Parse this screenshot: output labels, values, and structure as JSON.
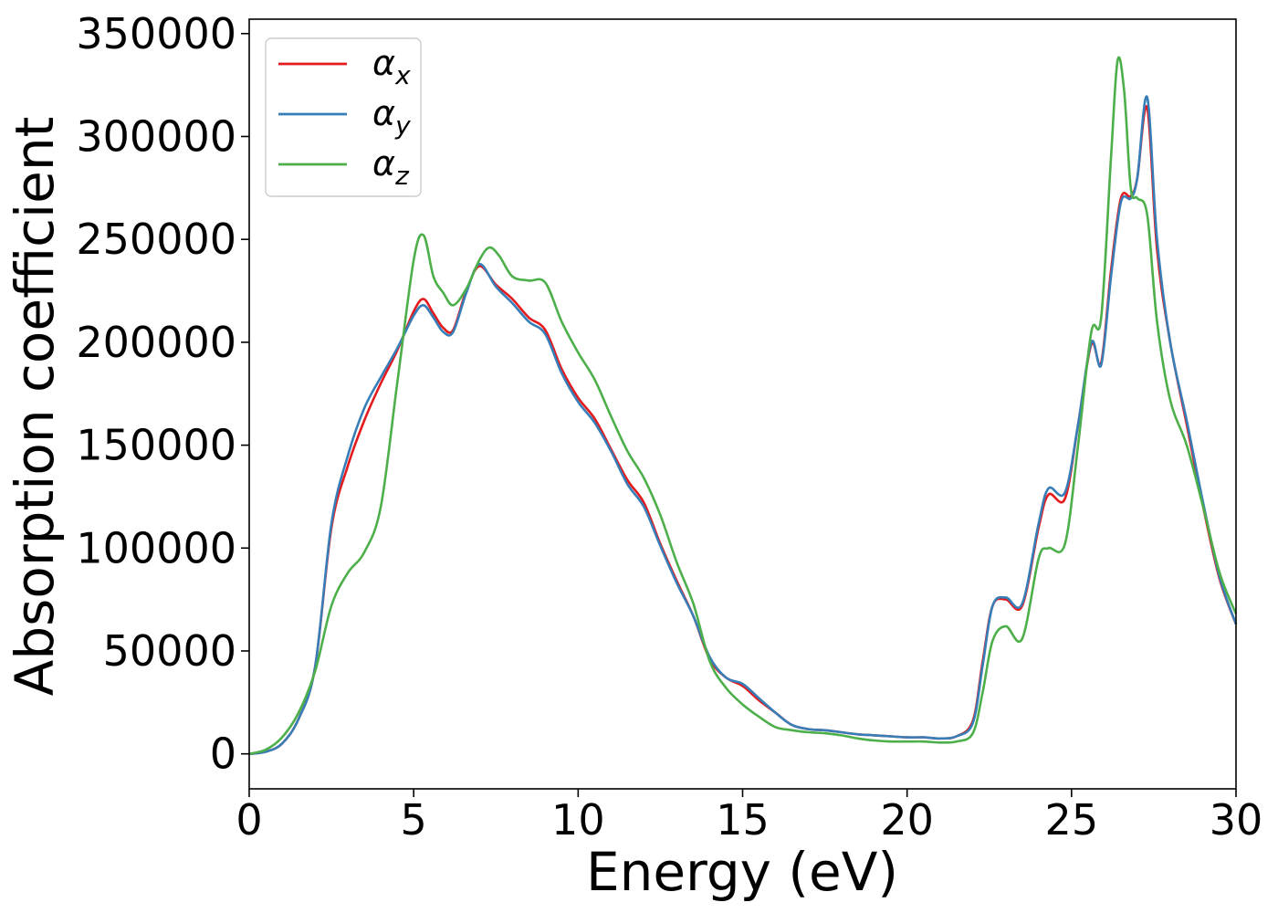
{
  "chart_data": {
    "type": "line",
    "xlabel": "Energy (eV)",
    "ylabel": "Absorption coefficient",
    "xlim": [
      0,
      30
    ],
    "ylim": [
      -17000,
      357000
    ],
    "xticks": [
      0,
      5,
      10,
      15,
      20,
      25,
      30
    ],
    "yticks": [
      0,
      50000,
      100000,
      150000,
      200000,
      250000,
      300000,
      350000
    ],
    "grid": false,
    "legend_position": "top-left",
    "series": [
      {
        "name": "α_x",
        "legend_base": "α",
        "legend_sub": "x",
        "color": "#e41a1c",
        "x": [
          0,
          0.5,
          1,
          1.5,
          2,
          2.5,
          3,
          3.5,
          4,
          4.5,
          5,
          5.3,
          5.6,
          5.9,
          6.2,
          6.6,
          7,
          7.5,
          8,
          8.5,
          9,
          9.5,
          10,
          10.5,
          11,
          11.5,
          12,
          12.5,
          13,
          13.5,
          14,
          14.5,
          15,
          15.5,
          16,
          16.5,
          17,
          17.5,
          18,
          18.5,
          19,
          19.5,
          20,
          20.5,
          21,
          21.5,
          22,
          22.3,
          22.6,
          23,
          23.5,
          24,
          24.3,
          24.8,
          25.2,
          25.6,
          25.9,
          26.2,
          26.5,
          26.8,
          27,
          27.3,
          27.6,
          28,
          28.5,
          29,
          29.5,
          30
        ],
        "y": [
          0,
          1000,
          5000,
          17000,
          42000,
          110000,
          140000,
          162000,
          180000,
          196000,
          215000,
          221000,
          214000,
          207000,
          206000,
          225000,
          237000,
          228000,
          221000,
          212000,
          206000,
          187000,
          173000,
          163000,
          148000,
          133000,
          122000,
          102000,
          84000,
          67000,
          46000,
          37000,
          33000,
          26000,
          20000,
          14000,
          12000,
          11500,
          10500,
          9500,
          9000,
          8500,
          8000,
          8000,
          7500,
          8500,
          16000,
          45000,
          72000,
          75000,
          72000,
          110000,
          126000,
          124000,
          160000,
          199000,
          190000,
          235000,
          270000,
          271000,
          280000,
          314000,
          245000,
          200000,
          160000,
          120000,
          85000,
          63000
        ]
      },
      {
        "name": "α_y",
        "legend_base": "α",
        "legend_sub": "y",
        "color": "#377eb8",
        "x": [
          0,
          0.5,
          1,
          1.5,
          2,
          2.5,
          3,
          3.5,
          4,
          4.5,
          5,
          5.3,
          5.6,
          5.9,
          6.2,
          6.6,
          7,
          7.5,
          8,
          8.5,
          9,
          9.5,
          10,
          10.5,
          11,
          11.5,
          12,
          12.5,
          13,
          13.5,
          14,
          14.5,
          15,
          15.5,
          16,
          16.5,
          17,
          17.5,
          18,
          18.5,
          19,
          19.5,
          20,
          20.5,
          21,
          21.5,
          22,
          22.3,
          22.6,
          23,
          23.5,
          24,
          24.3,
          24.8,
          25.2,
          25.6,
          25.9,
          26.2,
          26.5,
          26.8,
          27,
          27.3,
          27.6,
          28,
          28.5,
          29,
          29.5,
          30
        ],
        "y": [
          0,
          1000,
          5000,
          17000,
          42000,
          112000,
          145000,
          168000,
          183000,
          197000,
          213000,
          218000,
          212000,
          205000,
          205000,
          224000,
          238000,
          227000,
          219000,
          210000,
          204000,
          185000,
          171000,
          161000,
          147000,
          131000,
          120000,
          101000,
          83000,
          67000,
          47000,
          37000,
          34000,
          27000,
          20000,
          14000,
          12000,
          11500,
          10500,
          9500,
          9000,
          8500,
          8000,
          8000,
          7500,
          8500,
          15000,
          43000,
          72000,
          76000,
          73000,
          112000,
          129000,
          127000,
          160000,
          200000,
          189000,
          232000,
          268000,
          270000,
          280000,
          319000,
          250000,
          200000,
          162000,
          122000,
          86000,
          63000
        ]
      },
      {
        "name": "α_z",
        "legend_base": "α",
        "legend_sub": "z",
        "color": "#4daf4a",
        "x": [
          0,
          0.5,
          1,
          1.5,
          2,
          2.5,
          3,
          3.5,
          4,
          4.5,
          5,
          5.3,
          5.6,
          5.9,
          6.2,
          6.6,
          7,
          7.3,
          7.6,
          8,
          8.5,
          9,
          9.5,
          10,
          10.5,
          11,
          11.5,
          12,
          12.5,
          13,
          13.5,
          14,
          14.5,
          15,
          15.5,
          16,
          16.5,
          17,
          17.5,
          18,
          18.5,
          19,
          19.5,
          20,
          20.5,
          21,
          21.5,
          22,
          22.3,
          22.6,
          23,
          23.5,
          24,
          24.3,
          24.8,
          25.2,
          25.6,
          25.9,
          26.2,
          26.4,
          26.6,
          26.8,
          27,
          27.3,
          27.6,
          28,
          28.5,
          29,
          29.5,
          30
        ],
        "y": [
          0,
          2000,
          8000,
          20000,
          40000,
          72000,
          88000,
          98000,
          120000,
          180000,
          240000,
          252000,
          232000,
          224000,
          218000,
          226000,
          240000,
          246000,
          242000,
          232000,
          230000,
          229000,
          210000,
          195000,
          182000,
          164000,
          147000,
          134000,
          116000,
          93000,
          73000,
          45000,
          32000,
          24000,
          18000,
          13000,
          11500,
          10500,
          10000,
          9000,
          7500,
          6500,
          6000,
          6000,
          6000,
          5500,
          6000,
          10000,
          30000,
          55000,
          62000,
          56000,
          95000,
          100000,
          102000,
          150000,
          205000,
          212000,
          290000,
          337000,
          322000,
          275000,
          270000,
          262000,
          210000,
          172000,
          150000,
          120000,
          88000,
          68000
        ]
      }
    ]
  }
}
